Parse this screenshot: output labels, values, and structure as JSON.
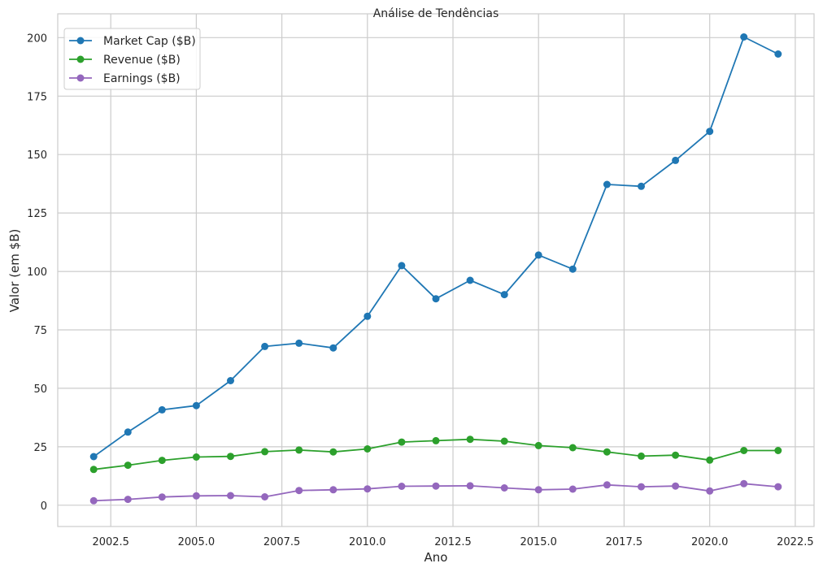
{
  "chart_data": {
    "type": "line",
    "title": "Análise de Tendências",
    "xlabel": "Ano",
    "ylabel": "Valor (em $B)",
    "x": [
      2002,
      2003,
      2004,
      2005,
      2006,
      2007,
      2008,
      2009,
      2010,
      2011,
      2012,
      2013,
      2014,
      2015,
      2016,
      2017,
      2018,
      2019,
      2020,
      2021,
      2022
    ],
    "xlim": [
      2000.95,
      2023.05
    ],
    "ylim": [
      -9.1,
      210.2
    ],
    "xticks": [
      2002.5,
      2005.0,
      2007.5,
      2010.0,
      2012.5,
      2015.0,
      2017.5,
      2020.0,
      2022.5
    ],
    "xtick_labels": [
      "2002.5",
      "2005.0",
      "2007.5",
      "2010.0",
      "2012.5",
      "2015.0",
      "2017.5",
      "2020.0",
      "2022.5"
    ],
    "yticks": [
      0,
      25,
      50,
      75,
      100,
      125,
      150,
      175,
      200
    ],
    "ytick_labels": [
      "0",
      "25",
      "50",
      "75",
      "100",
      "125",
      "150",
      "175",
      "200"
    ],
    "grid": true,
    "legend_position": "top-left",
    "series": [
      {
        "name": "Market Cap ($B)",
        "color": "#1f77b4",
        "values": [
          20.8,
          31.3,
          40.8,
          42.6,
          53.3,
          67.9,
          69.3,
          67.3,
          80.8,
          102.5,
          88.3,
          96.2,
          90.1,
          107.0,
          101.0,
          137.2,
          136.4,
          147.5,
          159.9,
          200.3,
          193.0
        ]
      },
      {
        "name": "Revenue ($B)",
        "color": "#2ca02c",
        "values": [
          15.3,
          17.1,
          19.2,
          20.6,
          20.9,
          22.9,
          23.6,
          22.8,
          24.1,
          27.0,
          27.6,
          28.2,
          27.4,
          25.5,
          24.6,
          22.8,
          21.0,
          21.4,
          19.3,
          23.4,
          23.4
        ]
      },
      {
        "name": "Earnings ($B)",
        "color": "#9467bd",
        "values": [
          1.9,
          2.5,
          3.5,
          4.0,
          4.1,
          3.6,
          6.3,
          6.6,
          7.0,
          8.1,
          8.2,
          8.3,
          7.4,
          6.6,
          6.9,
          8.7,
          7.9,
          8.2,
          6.1,
          9.2,
          7.9
        ]
      }
    ]
  }
}
